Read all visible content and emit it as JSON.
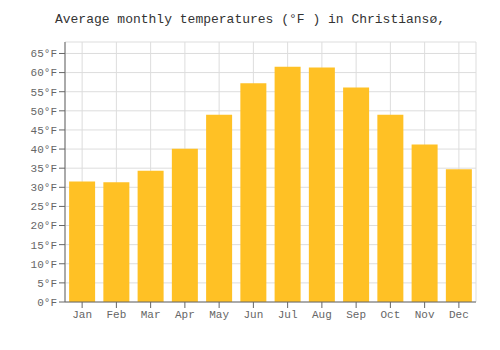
{
  "chart_data": {
    "type": "bar",
    "title": "Average monthly temperatures (°F ) in Christiansø,",
    "categories": [
      "Jan",
      "Feb",
      "Mar",
      "Apr",
      "May",
      "Jun",
      "Jul",
      "Aug",
      "Sep",
      "Oct",
      "Nov",
      "Dec"
    ],
    "values": [
      31.5,
      31.3,
      34.3,
      40.1,
      49.0,
      57.2,
      61.5,
      61.3,
      56.1,
      49.0,
      41.2,
      34.7
    ],
    "color": "#FFC125",
    "ylim": [
      0,
      68
    ],
    "yticks": [
      {
        "value": 0,
        "label": "0°F"
      },
      {
        "value": 5,
        "label": "5°F"
      },
      {
        "value": 10,
        "label": "10°F"
      },
      {
        "value": 15,
        "label": "15°F"
      },
      {
        "value": 20,
        "label": "20°F"
      },
      {
        "value": 25,
        "label": "25°F"
      },
      {
        "value": 30,
        "label": "30°F"
      },
      {
        "value": 35,
        "label": "35°F"
      },
      {
        "value": 40,
        "label": "40°F"
      },
      {
        "value": 45,
        "label": "45°F"
      },
      {
        "value": 50,
        "label": "50°F"
      },
      {
        "value": 55,
        "label": "55°F"
      },
      {
        "value": 60,
        "label": "60°F"
      },
      {
        "value": 65,
        "label": "65°F"
      }
    ],
    "grid": true
  }
}
